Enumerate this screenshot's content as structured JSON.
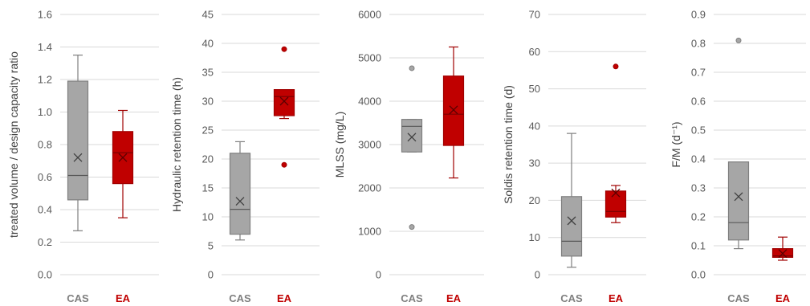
{
  "colors": {
    "cas_fill": "#a6a6a6",
    "cas_stroke": "#7f7f7f",
    "ea_fill": "#c00000",
    "ea_stroke": "#a00000",
    "cas_label": "#7f7f7f",
    "ea_label": "#c00000"
  },
  "chart_data": [
    {
      "type": "boxplot",
      "ylabel": "treated volume / design capacity ratio",
      "ylim": [
        0.0,
        1.6
      ],
      "yticks": [
        "0.0",
        "0.2",
        "0.4",
        "0.6",
        "0.8",
        "1.0",
        "1.2",
        "1.4",
        "1.6"
      ],
      "categories": [
        "CAS",
        "EA"
      ],
      "series": [
        {
          "category": "CAS",
          "min": 0.27,
          "q1": 0.46,
          "median": 0.61,
          "q3": 1.19,
          "max": 1.35,
          "mean": 0.72,
          "outliers": []
        },
        {
          "category": "EA",
          "min": 0.35,
          "q1": 0.56,
          "median": 0.75,
          "q3": 0.88,
          "max": 1.01,
          "mean": 0.72,
          "outliers": []
        }
      ],
      "grid": true
    },
    {
      "type": "boxplot",
      "ylabel": "Hydraulic retention time (h)",
      "ylim": [
        0,
        45
      ],
      "yticks": [
        "0",
        "5",
        "10",
        "15",
        "20",
        "25",
        "30",
        "35",
        "40",
        "45"
      ],
      "categories": [
        "CAS",
        "EA"
      ],
      "series": [
        {
          "category": "CAS",
          "min": 6,
          "q1": 7,
          "median": 11.3,
          "q3": 21,
          "max": 23,
          "mean": 12.7,
          "outliers": []
        },
        {
          "category": "EA",
          "min": 27,
          "q1": 27.5,
          "median": 30.8,
          "q3": 32,
          "max": 32,
          "mean": 30,
          "outliers": [
            39,
            19
          ]
        }
      ],
      "grid": true
    },
    {
      "type": "boxplot",
      "ylabel": "MLSS (mg/L)",
      "ylim": [
        0,
        6000
      ],
      "yticks": [
        "0",
        "1000",
        "2000",
        "3000",
        "4000",
        "5000",
        "6000"
      ],
      "categories": [
        "CAS",
        "EA"
      ],
      "series": [
        {
          "category": "CAS",
          "min": 2830,
          "q1": 2830,
          "median": 3420,
          "q3": 3580,
          "max": 3580,
          "mean": 3170,
          "outliers": [
            4760,
            1100
          ]
        },
        {
          "category": "EA",
          "min": 2230,
          "q1": 2980,
          "median": 3700,
          "q3": 4580,
          "max": 5250,
          "mean": 3800,
          "outliers": []
        }
      ],
      "grid": true
    },
    {
      "type": "boxplot",
      "ylabel": "Soldis retention time (d)",
      "ylim": [
        0,
        70
      ],
      "yticks": [
        "0",
        "10",
        "20",
        "30",
        "40",
        "50",
        "60",
        "70"
      ],
      "categories": [
        "CAS",
        "EA"
      ],
      "series": [
        {
          "category": "CAS",
          "min": 2,
          "q1": 5,
          "median": 9,
          "q3": 21,
          "max": 38,
          "mean": 14.5,
          "outliers": []
        },
        {
          "category": "EA",
          "min": 14,
          "q1": 15.5,
          "median": 17,
          "q3": 22.5,
          "max": 24,
          "mean": 22,
          "outliers": [
            56
          ]
        }
      ],
      "grid": true
    },
    {
      "type": "boxplot",
      "ylabel": "F/M (d⁻¹)",
      "ylim": [
        0.0,
        0.9
      ],
      "yticks": [
        "0.0",
        "0.1",
        "0.2",
        "0.3",
        "0.4",
        "0.5",
        "0.6",
        "0.7",
        "0.8",
        "0.9"
      ],
      "categories": [
        "CAS",
        "EA"
      ],
      "series": [
        {
          "category": "CAS",
          "min": 0.09,
          "q1": 0.12,
          "median": 0.18,
          "q3": 0.39,
          "max": 0.39,
          "mean": 0.27,
          "outliers": [
            0.81
          ]
        },
        {
          "category": "EA",
          "min": 0.05,
          "q1": 0.06,
          "median": 0.065,
          "q3": 0.09,
          "max": 0.13,
          "mean": 0.073,
          "outliers": []
        }
      ],
      "grid": true
    }
  ]
}
